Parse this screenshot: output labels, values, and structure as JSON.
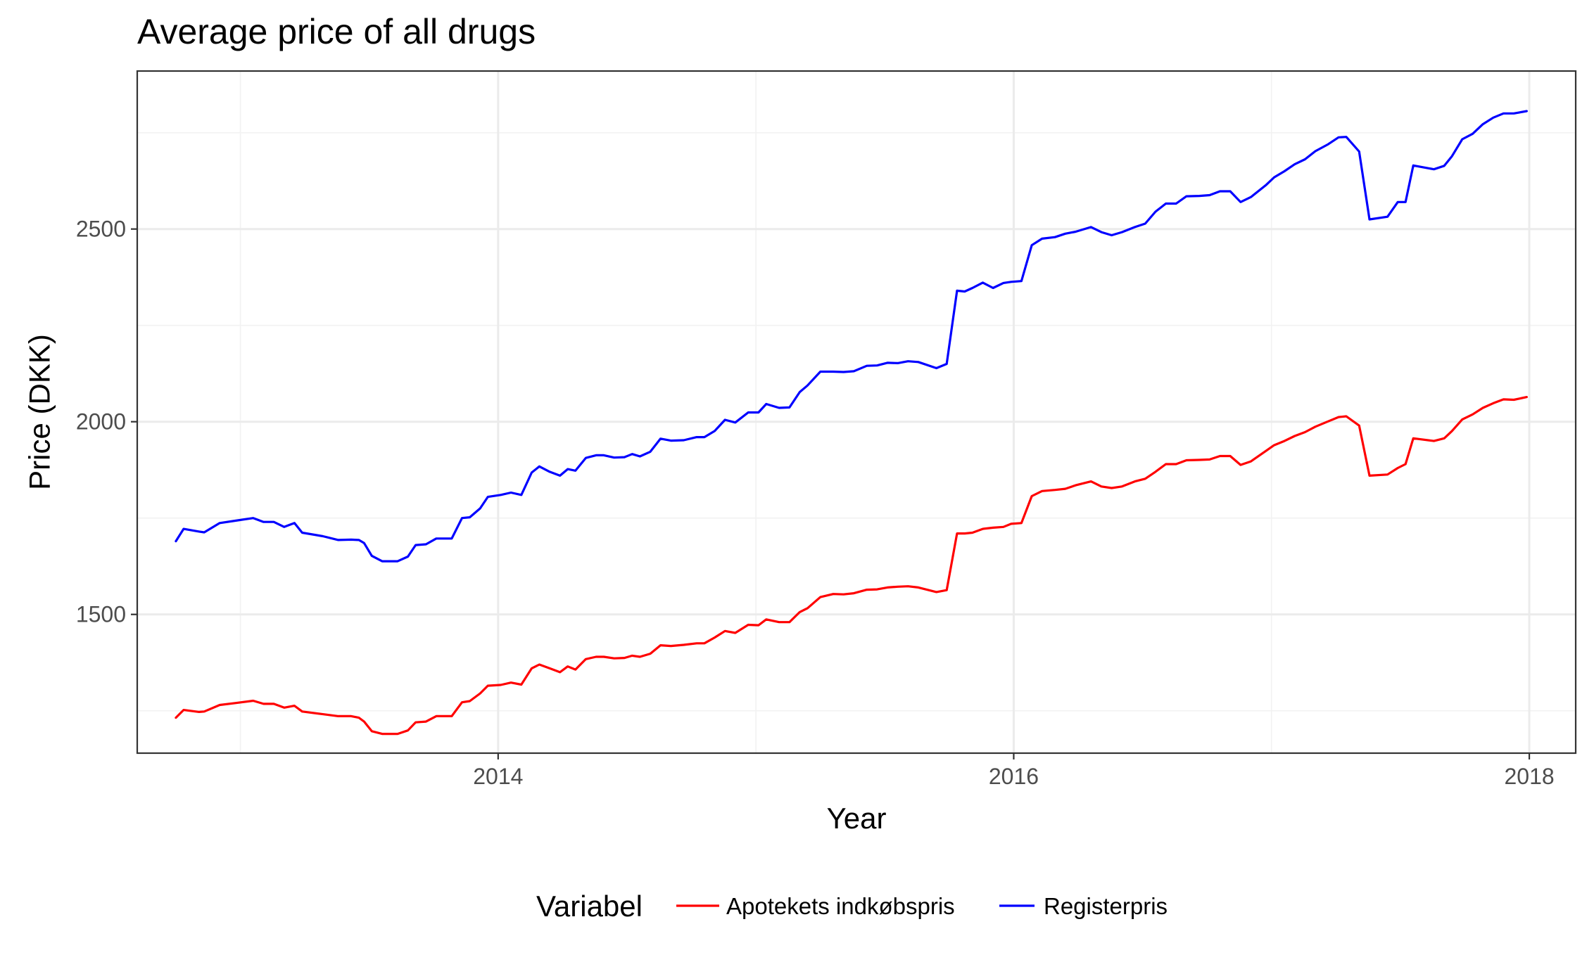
{
  "chart_data": {
    "type": "line",
    "title": "Average price of all drugs",
    "xlabel": "Year",
    "ylabel": "Price (DKK)",
    "xlim": [
      2012.6,
      2018.18
    ],
    "ylim": [
      1140,
      2910
    ],
    "x_ticks": [
      2014,
      2016,
      2018
    ],
    "x_tick_labels": [
      "2014",
      "2016",
      "2018"
    ],
    "y_ticks": [
      1500,
      2000,
      2500
    ],
    "y_tick_labels": [
      "1500",
      "2000",
      "2500"
    ],
    "grid": true,
    "legend": {
      "title": "Variabel",
      "position": "bottom"
    },
    "series": [
      {
        "name": "Apotekets indkøbspris",
        "color": "#ff0000",
        "points": [
          [
            2012.75,
            1232
          ],
          [
            2012.78,
            1252
          ],
          [
            2012.84,
            1247
          ],
          [
            2012.86,
            1248
          ],
          [
            2012.92,
            1265
          ],
          [
            2012.98,
            1270
          ],
          [
            2013.05,
            1276
          ],
          [
            2013.09,
            1268
          ],
          [
            2013.13,
            1268
          ],
          [
            2013.17,
            1258
          ],
          [
            2013.21,
            1263
          ],
          [
            2013.24,
            1248
          ],
          [
            2013.32,
            1241
          ],
          [
            2013.38,
            1236
          ],
          [
            2013.43,
            1236
          ],
          [
            2013.46,
            1232
          ],
          [
            2013.48,
            1222
          ],
          [
            2013.51,
            1197
          ],
          [
            2013.55,
            1190
          ],
          [
            2013.61,
            1190
          ],
          [
            2013.65,
            1199
          ],
          [
            2013.68,
            1220
          ],
          [
            2013.72,
            1222
          ],
          [
            2013.76,
            1236
          ],
          [
            2013.82,
            1236
          ],
          [
            2013.86,
            1272
          ],
          [
            2013.89,
            1275
          ],
          [
            2013.93,
            1295
          ],
          [
            2013.96,
            1315
          ],
          [
            2014.01,
            1317
          ],
          [
            2014.05,
            1323
          ],
          [
            2014.09,
            1318
          ],
          [
            2014.13,
            1360
          ],
          [
            2014.16,
            1370
          ],
          [
            2014.2,
            1360
          ],
          [
            2014.24,
            1350
          ],
          [
            2014.27,
            1365
          ],
          [
            2014.3,
            1357
          ],
          [
            2014.34,
            1384
          ],
          [
            2014.38,
            1390
          ],
          [
            2014.41,
            1390
          ],
          [
            2014.45,
            1386
          ],
          [
            2014.49,
            1387
          ],
          [
            2014.52,
            1393
          ],
          [
            2014.55,
            1390
          ],
          [
            2014.59,
            1398
          ],
          [
            2014.63,
            1420
          ],
          [
            2014.67,
            1418
          ],
          [
            2014.72,
            1421
          ],
          [
            2014.77,
            1425
          ],
          [
            2014.8,
            1425
          ],
          [
            2014.84,
            1440
          ],
          [
            2014.88,
            1457
          ],
          [
            2014.92,
            1452
          ],
          [
            2014.97,
            1473
          ],
          [
            2015.01,
            1472
          ],
          [
            2015.04,
            1487
          ],
          [
            2015.09,
            1480
          ],
          [
            2015.13,
            1480
          ],
          [
            2015.17,
            1506
          ],
          [
            2015.2,
            1516
          ],
          [
            2015.25,
            1545
          ],
          [
            2015.3,
            1553
          ],
          [
            2015.34,
            1552
          ],
          [
            2015.38,
            1555
          ],
          [
            2015.43,
            1564
          ],
          [
            2015.47,
            1565
          ],
          [
            2015.51,
            1570
          ],
          [
            2015.55,
            1572
          ],
          [
            2015.59,
            1573
          ],
          [
            2015.63,
            1570
          ],
          [
            2015.7,
            1558
          ],
          [
            2015.74,
            1563
          ],
          [
            2015.78,
            1710
          ],
          [
            2015.81,
            1710
          ],
          [
            2015.84,
            1712
          ],
          [
            2015.88,
            1722
          ],
          [
            2015.92,
            1725
          ],
          [
            2015.96,
            1727
          ],
          [
            2015.99,
            1735
          ],
          [
            2016.03,
            1737
          ],
          [
            2016.07,
            1807
          ],
          [
            2016.11,
            1820
          ],
          [
            2016.16,
            1823
          ],
          [
            2016.2,
            1826
          ],
          [
            2016.24,
            1835
          ],
          [
            2016.3,
            1845
          ],
          [
            2016.34,
            1832
          ],
          [
            2016.38,
            1828
          ],
          [
            2016.42,
            1832
          ],
          [
            2016.47,
            1845
          ],
          [
            2016.51,
            1852
          ],
          [
            2016.55,
            1870
          ],
          [
            2016.59,
            1890
          ],
          [
            2016.63,
            1890
          ],
          [
            2016.67,
            1900
          ],
          [
            2016.72,
            1901
          ],
          [
            2016.76,
            1902
          ],
          [
            2016.8,
            1911
          ],
          [
            2016.84,
            1911
          ],
          [
            2016.88,
            1888
          ],
          [
            2016.92,
            1897
          ],
          [
            2016.98,
            1925
          ],
          [
            2017.01,
            1939
          ],
          [
            2017.05,
            1950
          ],
          [
            2017.09,
            1963
          ],
          [
            2017.13,
            1973
          ],
          [
            2017.17,
            1987
          ],
          [
            2017.22,
            2001
          ],
          [
            2017.26,
            2012
          ],
          [
            2017.29,
            2014
          ],
          [
            2017.34,
            1990
          ],
          [
            2017.38,
            1860
          ],
          [
            2017.45,
            1863
          ],
          [
            2017.49,
            1880
          ],
          [
            2017.52,
            1890
          ],
          [
            2017.55,
            1957
          ],
          [
            2017.63,
            1950
          ],
          [
            2017.67,
            1957
          ],
          [
            2017.7,
            1976
          ],
          [
            2017.74,
            2006
          ],
          [
            2017.78,
            2019
          ],
          [
            2017.82,
            2036
          ],
          [
            2017.86,
            2048
          ],
          [
            2017.9,
            2058
          ],
          [
            2017.94,
            2057
          ],
          [
            2017.99,
            2064
          ]
        ]
      },
      {
        "name": "Registerpris",
        "color": "#0000ff",
        "points": [
          [
            2012.75,
            1690
          ],
          [
            2012.78,
            1722
          ],
          [
            2012.84,
            1715
          ],
          [
            2012.86,
            1713
          ],
          [
            2012.92,
            1737
          ],
          [
            2012.98,
            1743
          ],
          [
            2013.05,
            1750
          ],
          [
            2013.09,
            1740
          ],
          [
            2013.13,
            1740
          ],
          [
            2013.17,
            1727
          ],
          [
            2013.21,
            1737
          ],
          [
            2013.24,
            1712
          ],
          [
            2013.32,
            1703
          ],
          [
            2013.38,
            1693
          ],
          [
            2013.43,
            1694
          ],
          [
            2013.46,
            1693
          ],
          [
            2013.48,
            1685
          ],
          [
            2013.51,
            1652
          ],
          [
            2013.55,
            1638
          ],
          [
            2013.61,
            1638
          ],
          [
            2013.65,
            1650
          ],
          [
            2013.68,
            1680
          ],
          [
            2013.72,
            1682
          ],
          [
            2013.76,
            1697
          ],
          [
            2013.82,
            1697
          ],
          [
            2013.86,
            1750
          ],
          [
            2013.89,
            1752
          ],
          [
            2013.93,
            1775
          ],
          [
            2013.96,
            1805
          ],
          [
            2014.01,
            1810
          ],
          [
            2014.05,
            1816
          ],
          [
            2014.09,
            1810
          ],
          [
            2014.13,
            1868
          ],
          [
            2014.16,
            1884
          ],
          [
            2014.2,
            1870
          ],
          [
            2014.24,
            1860
          ],
          [
            2014.27,
            1877
          ],
          [
            2014.3,
            1873
          ],
          [
            2014.34,
            1906
          ],
          [
            2014.38,
            1913
          ],
          [
            2014.41,
            1913
          ],
          [
            2014.45,
            1907
          ],
          [
            2014.49,
            1908
          ],
          [
            2014.52,
            1916
          ],
          [
            2014.55,
            1910
          ],
          [
            2014.59,
            1922
          ],
          [
            2014.63,
            1956
          ],
          [
            2014.67,
            1951
          ],
          [
            2014.72,
            1952
          ],
          [
            2014.77,
            1960
          ],
          [
            2014.8,
            1960
          ],
          [
            2014.84,
            1976
          ],
          [
            2014.88,
            2005
          ],
          [
            2014.92,
            1998
          ],
          [
            2014.97,
            2024
          ],
          [
            2015.01,
            2024
          ],
          [
            2015.04,
            2046
          ],
          [
            2015.09,
            2036
          ],
          [
            2015.13,
            2037
          ],
          [
            2015.17,
            2077
          ],
          [
            2015.2,
            2094
          ],
          [
            2015.25,
            2130
          ],
          [
            2015.3,
            2130
          ],
          [
            2015.34,
            2129
          ],
          [
            2015.38,
            2131
          ],
          [
            2015.43,
            2145
          ],
          [
            2015.47,
            2146
          ],
          [
            2015.51,
            2153
          ],
          [
            2015.55,
            2152
          ],
          [
            2015.59,
            2157
          ],
          [
            2015.63,
            2155
          ],
          [
            2015.7,
            2139
          ],
          [
            2015.74,
            2150
          ],
          [
            2015.78,
            2340
          ],
          [
            2015.81,
            2338
          ],
          [
            2015.84,
            2347
          ],
          [
            2015.88,
            2361
          ],
          [
            2015.92,
            2347
          ],
          [
            2015.96,
            2360
          ],
          [
            2015.99,
            2363
          ],
          [
            2016.03,
            2365
          ],
          [
            2016.07,
            2458
          ],
          [
            2016.11,
            2475
          ],
          [
            2016.16,
            2479
          ],
          [
            2016.2,
            2488
          ],
          [
            2016.24,
            2493
          ],
          [
            2016.3,
            2505
          ],
          [
            2016.34,
            2492
          ],
          [
            2016.38,
            2484
          ],
          [
            2016.42,
            2492
          ],
          [
            2016.47,
            2505
          ],
          [
            2016.51,
            2514
          ],
          [
            2016.55,
            2545
          ],
          [
            2016.59,
            2566
          ],
          [
            2016.63,
            2566
          ],
          [
            2016.67,
            2585
          ],
          [
            2016.72,
            2586
          ],
          [
            2016.76,
            2588
          ],
          [
            2016.8,
            2598
          ],
          [
            2016.84,
            2598
          ],
          [
            2016.88,
            2570
          ],
          [
            2016.92,
            2583
          ],
          [
            2016.98,
            2615
          ],
          [
            2017.01,
            2634
          ],
          [
            2017.05,
            2650
          ],
          [
            2017.09,
            2668
          ],
          [
            2017.13,
            2681
          ],
          [
            2017.17,
            2702
          ],
          [
            2017.22,
            2720
          ],
          [
            2017.26,
            2738
          ],
          [
            2017.29,
            2739
          ],
          [
            2017.34,
            2701
          ],
          [
            2017.38,
            2525
          ],
          [
            2017.45,
            2532
          ],
          [
            2017.49,
            2570
          ],
          [
            2017.52,
            2570
          ],
          [
            2017.55,
            2665
          ],
          [
            2017.63,
            2655
          ],
          [
            2017.67,
            2664
          ],
          [
            2017.7,
            2689
          ],
          [
            2017.74,
            2733
          ],
          [
            2017.78,
            2747
          ],
          [
            2017.82,
            2772
          ],
          [
            2017.86,
            2789
          ],
          [
            2017.9,
            2800
          ],
          [
            2017.94,
            2800
          ],
          [
            2017.99,
            2806
          ]
        ]
      }
    ]
  }
}
